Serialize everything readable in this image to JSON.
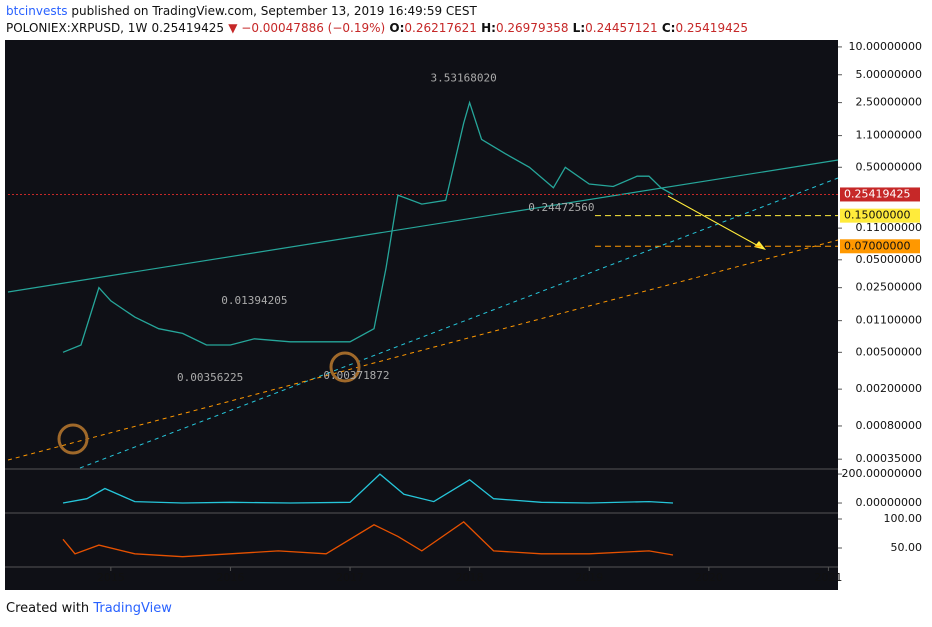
{
  "header": {
    "author": "btcinvests",
    "published": "published on TradingView.com, September 13, 2019 16:49:59 CEST",
    "symbol": "POLONIEX:XRPUSD, 1W",
    "last": "0.25419425",
    "change": "▼ −0.00047886 (−0.19%)",
    "ohlc": [
      {
        "label": "O:",
        "value": "0.26217621"
      },
      {
        "label": "H:",
        "value": "0.26979358"
      },
      {
        "label": "L:",
        "value": "0.24457121"
      },
      {
        "label": "C:",
        "value": "0.25419425"
      }
    ]
  },
  "footer": {
    "text": "Created with",
    "brand": "TradingView"
  },
  "chart_data": [
    {
      "type": "line",
      "log_scale": true,
      "xlim": [
        2014.14,
        2021.08
      ],
      "ylim": [
        0.000281,
        11.3
      ],
      "xticks": [
        2015,
        2016,
        2017,
        2018,
        2019,
        2020,
        2021
      ],
      "yticks": [
        {
          "value": 10,
          "label": "10.00000000"
        },
        {
          "value": 5,
          "label": "5.00000000"
        },
        {
          "value": 2.5,
          "label": "2.50000000"
        },
        {
          "value": 1.1,
          "label": "1.10000000"
        },
        {
          "value": 0.5,
          "label": "0.50000000"
        },
        {
          "value": 0.11,
          "label": "0.11000000"
        },
        {
          "value": 0.05,
          "label": "0.05000000"
        },
        {
          "value": 0.025,
          "label": "0.02500000"
        },
        {
          "value": 0.011,
          "label": "0.01100000"
        },
        {
          "value": 0.005,
          "label": "0.00500000"
        },
        {
          "value": 0.002,
          "label": "0.00200000"
        },
        {
          "value": 0.0008,
          "label": "0.00080000"
        },
        {
          "value": 0.00035,
          "label": "0.00035000"
        }
      ],
      "x": [
        2014.6,
        2014.75,
        2014.9,
        2015.0,
        2015.2,
        2015.4,
        2015.6,
        2015.8,
        2016.0,
        2016.2,
        2016.5,
        2016.8,
        2017.0,
        2017.2,
        2017.3,
        2017.4,
        2017.6,
        2017.8,
        2017.95,
        2018.0,
        2018.1,
        2018.3,
        2018.5,
        2018.7,
        2018.8,
        2019.0,
        2019.2,
        2019.4,
        2019.5,
        2019.6,
        2019.7
      ],
      "series": [
        {
          "name": "XRPUSD",
          "color": "#26a69a",
          "values": [
            0.005,
            0.006,
            0.025,
            0.018,
            0.012,
            0.009,
            0.008,
            0.006,
            0.006,
            0.007,
            0.0065,
            0.0065,
            0.0065,
            0.009,
            0.04,
            0.25,
            0.2,
            0.22,
            1.5,
            2.5,
            1.0,
            0.7,
            0.5,
            0.3,
            0.5,
            0.33,
            0.31,
            0.4,
            0.4,
            0.3,
            0.254
          ]
        }
      ],
      "annotations": [
        {
          "value": 3.5316802,
          "label": "3.53168020",
          "x": 2017.95
        },
        {
          "value": 0.01394205,
          "label": "0.01394205",
          "x": 2016.2
        },
        {
          "value": 0.00356225,
          "label": "0.00356225",
          "x": 2015.83
        },
        {
          "value": 0.00371872,
          "label": "0.00371872",
          "x": 2016.97
        },
        {
          "value": 0.2447256,
          "label": "0.24472560",
          "x": 2018.6
        }
      ],
      "levels": [
        {
          "value": 0.25419425,
          "label": "0.25419425",
          "color": "#c62828"
        },
        {
          "value": 0.15,
          "label": "0.15000000",
          "color": "#ffeb3b"
        },
        {
          "value": 0.07,
          "label": "0.07000000",
          "color": "#ff9800"
        }
      ]
    },
    {
      "type": "line",
      "xlim": [
        2014.14,
        2021.08
      ],
      "ylim": [
        -62,
        228
      ],
      "yticks": [
        {
          "value": 200,
          "label": "200.00000000"
        },
        {
          "value": 0,
          "label": "0.00000000"
        }
      ],
      "x": [
        2014.6,
        2014.8,
        2014.95,
        2015.2,
        2015.6,
        2016.0,
        2016.5,
        2017.0,
        2017.25,
        2017.45,
        2017.7,
        2018.0,
        2018.2,
        2018.6,
        2019.0,
        2019.5,
        2019.7
      ],
      "series": [
        {
          "name": "oscillator",
          "color": "#26c6da",
          "values": [
            0,
            30,
            100,
            10,
            0,
            5,
            0,
            5,
            200,
            60,
            10,
            160,
            30,
            5,
            0,
            10,
            0
          ]
        }
      ]
    },
    {
      "type": "line",
      "xlim": [
        2014.14,
        2021.08
      ],
      "ylim": [
        19,
        108.6
      ],
      "yticks": [
        {
          "value": 100,
          "label": "100.00"
        },
        {
          "value": 50,
          "label": "50.00"
        }
      ],
      "x": [
        2014.6,
        2014.7,
        2014.9,
        2015.2,
        2015.6,
        2016.0,
        2016.4,
        2016.8,
        2017.2,
        2017.4,
        2017.6,
        2017.95,
        2018.2,
        2018.6,
        2019.0,
        2019.5,
        2019.7
      ],
      "series": [
        {
          "name": "rsi",
          "color": "#e65100",
          "values": [
            65,
            40,
            55,
            40,
            35,
            40,
            45,
            40,
            90,
            70,
            45,
            95,
            45,
            40,
            40,
            45,
            38
          ]
        }
      ]
    }
  ]
}
